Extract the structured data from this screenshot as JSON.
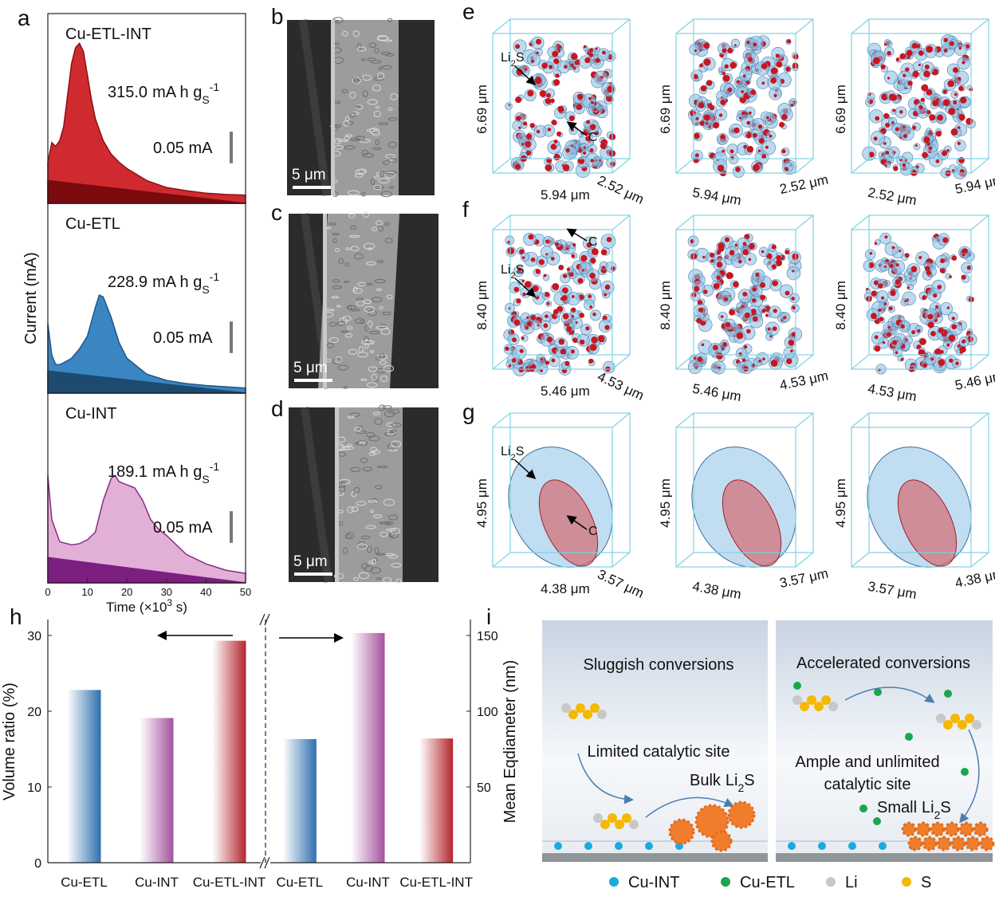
{
  "chart_data": [
    {
      "type": "area",
      "xlabel": [
        "Time (×10",
        "3",
        " s)"
      ],
      "ylabel": "Current (mA)",
      "xlim": [
        0,
        50
      ],
      "xticks": [
        0,
        10,
        20,
        30,
        40,
        50
      ],
      "ylim": [
        0,
        0.3
      ],
      "unit": [
        "mA h g",
        "S",
        "-1"
      ],
      "panels": [
        {
          "name": "Cu-ETL-INT",
          "capacity": "315.0",
          "scale_bar": {
            "value": 0.05,
            "label": "0.05 mA"
          },
          "series": [
            {
              "color": "#cf2a30",
              "line_color": "#8c1015",
              "x": [
                0,
                1,
                2,
                3,
                4,
                5,
                6,
                7,
                8,
                9,
                10,
                11,
                12,
                14,
                16,
                18,
                20,
                25,
                30,
                35,
                40,
                45,
                50
              ],
              "values": [
                0.065,
                0.096,
                0.09,
                0.099,
                0.121,
                0.171,
                0.221,
                0.246,
                0.253,
                0.24,
                0.203,
                0.165,
                0.134,
                0.099,
                0.078,
                0.065,
                0.055,
                0.036,
                0.025,
                0.02,
                0.016,
                0.014,
                0.013
              ]
            },
            {
              "color": "#7a0a0d",
              "line_color": "#7a0a0d",
              "x": [
                0,
                50
              ],
              "values": [
                0.036,
                0
              ]
            }
          ]
        },
        {
          "name": "Cu-ETL",
          "capacity": "228.9",
          "scale_bar": {
            "value": 0.05,
            "label": "0.05 mA"
          },
          "series": [
            {
              "color": "#3a86c2",
              "line_color": "#1f5688",
              "x": [
                0,
                1,
                2,
                3,
                4,
                6,
                8,
                10,
                12,
                13,
                14,
                16,
                18,
                20,
                25,
                30,
                35,
                40,
                45,
                50
              ],
              "values": [
                0.11,
                0.06,
                0.045,
                0.045,
                0.048,
                0.055,
                0.07,
                0.09,
                0.135,
                0.155,
                0.152,
                0.12,
                0.08,
                0.055,
                0.03,
                0.02,
                0.015,
                0.012,
                0.01,
                0.008
              ]
            },
            {
              "color": "#1f4a70",
              "line_color": "#1f4a70",
              "x": [
                0,
                50
              ],
              "values": [
                0.035,
                0
              ]
            }
          ]
        },
        {
          "name": "Cu-INT",
          "capacity": "189.1",
          "scale_bar": {
            "value": 0.05,
            "label": "0.05 mA"
          },
          "series": [
            {
              "color": "#e2b0d6",
              "line_color": "#8a2a8a",
              "x": [
                0,
                1,
                3,
                6,
                8,
                10,
                12,
                14,
                16,
                17,
                18,
                20,
                22,
                24,
                26,
                28,
                30,
                35,
                40,
                45,
                50
              ],
              "values": [
                0.17,
                0.1,
                0.065,
                0.06,
                0.062,
                0.068,
                0.08,
                0.13,
                0.165,
                0.17,
                0.16,
                0.155,
                0.15,
                0.13,
                0.1,
                0.085,
                0.075,
                0.045,
                0.03,
                0.02,
                0.015
              ]
            },
            {
              "color": "#7c1f80",
              "line_color": "#7c1f80",
              "x": [
                0,
                50
              ],
              "values": [
                0.04,
                0
              ]
            }
          ]
        }
      ]
    },
    {
      "type": "bar",
      "categories": [
        "Cu-ETL",
        "Cu-INT",
        "Cu-ETL-INT"
      ],
      "colors": [
        "#2e6fae",
        "#a4519e",
        "#b3262e"
      ],
      "series": [
        {
          "values": [
            22.8,
            19.1,
            29.3
          ]
        },
        {
          "values": [
            81.6,
            151.6,
            82
          ],
          "axis": "y2"
        }
      ],
      "ylabel": "Volume ratio (%)",
      "y2label": "Mean Eqdiameter (nm)",
      "ylim": [
        0,
        32.1
      ],
      "yticks": [
        0,
        10,
        20,
        30
      ],
      "y2lim": [
        0,
        160.5
      ],
      "y2ticks": [
        50,
        100,
        150
      ]
    }
  ],
  "panel_letters": [
    "a",
    "b",
    "c",
    "d",
    "e",
    "f",
    "g",
    "h",
    "i"
  ],
  "sem": {
    "scale_bar": "5 μm"
  },
  "phases": {
    "li2s": [
      "Li",
      "2",
      "S"
    ],
    "carbon": "C"
  },
  "reconstructions": [
    {
      "height": "6.69 μm",
      "width": "5.94 μm",
      "depth": "2.52 μm"
    },
    {
      "height": "8.40 μm",
      "width": "5.46 μm",
      "depth": "4.53 μm"
    },
    {
      "height": "4.95 μm",
      "width": "4.38 μm",
      "depth": "3.57 μm"
    }
  ],
  "schematic": {
    "left": {
      "title": "Sluggish conversions",
      "site": "Limited catalytic site",
      "product": "Bulk"
    },
    "right": {
      "title": "Accelerated conversions",
      "site": [
        "Ample and unlimited",
        "catalytic site"
      ],
      "product": "Small"
    },
    "legend": [
      {
        "name": "Cu-INT",
        "color": "#1ca9e0"
      },
      {
        "name": "Cu-ETL",
        "color": "#1aa650"
      },
      {
        "name": "Li",
        "color": "#c8c8c8"
      },
      {
        "name": "S",
        "color": "#f5b800"
      }
    ]
  }
}
